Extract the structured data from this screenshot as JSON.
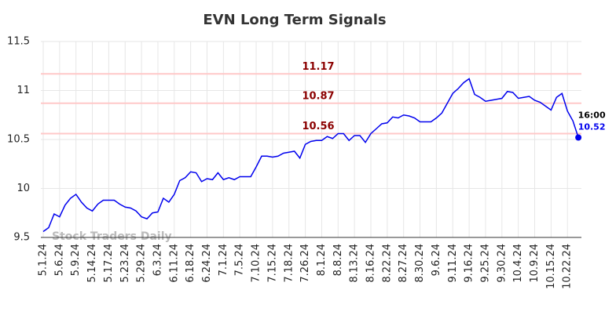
{
  "chart_data": {
    "type": "line",
    "title": "EVN Long Term Signals",
    "categories": [
      "5.1.24",
      null,
      null,
      "5.6.24",
      null,
      null,
      "5.9.24",
      null,
      null,
      "5.14.24",
      null,
      null,
      "5.17.24",
      null,
      null,
      "5.23.24",
      null,
      null,
      "5.29.24",
      null,
      null,
      "6.3.24",
      null,
      null,
      "6.11.24",
      null,
      null,
      "6.18.24",
      null,
      null,
      "6.24.24",
      null,
      null,
      "7.1.24",
      null,
      null,
      "7.5.24",
      null,
      null,
      "7.10.24",
      null,
      null,
      "7.15.24",
      null,
      null,
      "7.18.24",
      null,
      null,
      "7.26.24",
      null,
      null,
      "8.1.24",
      null,
      null,
      "8.8.24",
      null,
      null,
      "8.13.24",
      null,
      null,
      "8.16.24",
      null,
      null,
      "8.22.24",
      null,
      null,
      "8.27.24",
      null,
      null,
      "8.30.24",
      null,
      null,
      "9.6.24",
      null,
      null,
      "9.11.24",
      null,
      null,
      "9.16.24",
      null,
      null,
      "9.25.24",
      null,
      null,
      "9.30.24",
      null,
      null,
      "10.4.24",
      null,
      null,
      "10.9.24",
      null,
      null,
      "10.15.24",
      null,
      null,
      "10.22.24",
      null,
      null
    ],
    "values": [
      9.56,
      9.6,
      9.74,
      9.71,
      9.83,
      9.9,
      9.94,
      9.86,
      9.8,
      9.77,
      9.84,
      9.88,
      9.88,
      9.88,
      9.84,
      9.81,
      9.8,
      9.77,
      9.71,
      9.69,
      9.75,
      9.76,
      9.9,
      9.86,
      9.94,
      10.08,
      10.11,
      10.17,
      10.16,
      10.07,
      10.1,
      10.09,
      10.16,
      10.09,
      10.11,
      10.09,
      10.12,
      10.12,
      10.12,
      10.22,
      10.33,
      10.33,
      10.32,
      10.33,
      10.36,
      10.37,
      10.38,
      10.31,
      10.45,
      10.48,
      10.49,
      10.49,
      10.53,
      10.51,
      10.56,
      10.56,
      10.49,
      10.54,
      10.54,
      10.47,
      10.56,
      10.61,
      10.66,
      10.67,
      10.73,
      10.72,
      10.75,
      10.74,
      10.72,
      10.68,
      10.68,
      10.68,
      10.72,
      10.77,
      10.87,
      10.97,
      11.02,
      11.08,
      11.12,
      10.96,
      10.93,
      10.89,
      10.9,
      10.91,
      10.92,
      10.99,
      10.98,
      10.92,
      10.93,
      10.94,
      10.9,
      10.88,
      10.84,
      10.8,
      10.93,
      10.97,
      10.79,
      10.69,
      10.52
    ],
    "color": "#0000ee",
    "ylim": [
      9.5,
      11.5
    ],
    "yticks": [
      9.5,
      10,
      10.5,
      11,
      11.5
    ],
    "grid": true,
    "signal_levels": [
      11.17,
      10.87,
      10.56
    ],
    "signal_color": "#ffc8c8",
    "signal_label_color": "#8b0000",
    "last_time": "16:00",
    "watermark": "Stock Traders Daily"
  }
}
